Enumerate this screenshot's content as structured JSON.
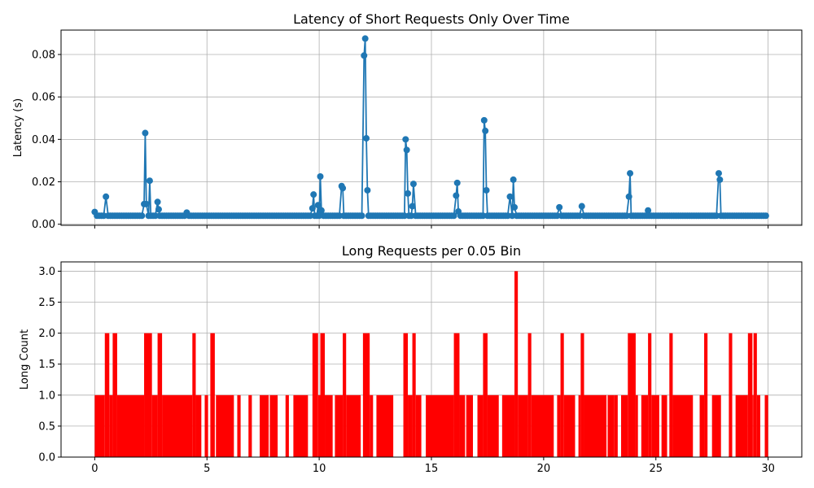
{
  "chart_data": [
    {
      "type": "line",
      "title": "Latency of Short Requests Only Over Time",
      "xlabel": "",
      "ylabel": "Latency (s)",
      "xlim": [
        -1.5,
        31.5
      ],
      "ylim": [
        -0.0005,
        0.0915
      ],
      "xticks": [
        0,
        5,
        10,
        15,
        20,
        25,
        30
      ],
      "xtick_labels": [
        "",
        "",
        "",
        "",
        "",
        "",
        ""
      ],
      "yticks": [
        0.0,
        0.02,
        0.04,
        0.06,
        0.08
      ],
      "ytick_labels": [
        "0.00",
        "0.02",
        "0.04",
        "0.06",
        "0.08"
      ],
      "grid": true,
      "color": "#1f77b4",
      "baseline": 0.004,
      "x_start": 0.0,
      "x_end": 29.9,
      "x_step": 0.1,
      "spikes": [
        [
          0.0,
          0.0058
        ],
        [
          0.5,
          0.013
        ],
        [
          2.2,
          0.0095
        ],
        [
          2.25,
          0.043
        ],
        [
          2.3,
          0.0095
        ],
        [
          2.45,
          0.0205
        ],
        [
          2.8,
          0.0105
        ],
        [
          2.85,
          0.007
        ],
        [
          4.1,
          0.0055
        ],
        [
          9.7,
          0.0075
        ],
        [
          9.75,
          0.014
        ],
        [
          9.95,
          0.009
        ],
        [
          10.05,
          0.0225
        ],
        [
          10.1,
          0.0065
        ],
        [
          11.0,
          0.018
        ],
        [
          11.05,
          0.017
        ],
        [
          12.0,
          0.0795
        ],
        [
          12.05,
          0.0875
        ],
        [
          12.1,
          0.0405
        ],
        [
          12.15,
          0.016
        ],
        [
          13.85,
          0.04
        ],
        [
          13.9,
          0.035
        ],
        [
          13.95,
          0.0145
        ],
        [
          14.15,
          0.0085
        ],
        [
          14.2,
          0.019
        ],
        [
          16.1,
          0.0135
        ],
        [
          16.15,
          0.0195
        ],
        [
          16.2,
          0.006
        ],
        [
          17.35,
          0.049
        ],
        [
          17.4,
          0.044
        ],
        [
          17.45,
          0.016
        ],
        [
          18.5,
          0.013
        ],
        [
          18.65,
          0.021
        ],
        [
          18.7,
          0.008
        ],
        [
          20.7,
          0.008
        ],
        [
          21.7,
          0.0085
        ],
        [
          23.8,
          0.013
        ],
        [
          23.85,
          0.024
        ],
        [
          24.65,
          0.0065
        ],
        [
          27.8,
          0.024
        ],
        [
          27.85,
          0.021
        ]
      ]
    },
    {
      "type": "bar",
      "title": "Long Requests per 0.05 Bin",
      "xlabel": "",
      "ylabel": "Long Count",
      "xlim": [
        -1.5,
        31.5
      ],
      "ylim": [
        0,
        3.15
      ],
      "xticks": [
        0,
        5,
        10,
        15,
        20,
        25,
        30
      ],
      "xtick_labels": [
        "0",
        "5",
        "10",
        "15",
        "20",
        "25",
        "30"
      ],
      "yticks": [
        0.0,
        0.5,
        1.0,
        1.5,
        2.0,
        2.5,
        3.0
      ],
      "ytick_labels": [
        "0.0",
        "0.5",
        "1.0",
        "1.5",
        "2.0",
        "2.5",
        "3.0"
      ],
      "grid": true,
      "color": "#ff0000",
      "bin_width": 0.05,
      "segments": [
        [
          0.0,
          0.45,
          1
        ],
        [
          0.45,
          0.65,
          2
        ],
        [
          0.65,
          0.8,
          1
        ],
        [
          0.8,
          1.0,
          2
        ],
        [
          1.0,
          2.2,
          1
        ],
        [
          2.2,
          2.55,
          2
        ],
        [
          2.55,
          2.8,
          1
        ],
        [
          2.8,
          3.0,
          2
        ],
        [
          3.0,
          4.35,
          1
        ],
        [
          4.35,
          4.5,
          2
        ],
        [
          4.5,
          4.75,
          1
        ],
        [
          4.9,
          5.05,
          1
        ],
        [
          5.15,
          5.35,
          2
        ],
        [
          5.4,
          6.2,
          1
        ],
        [
          6.35,
          6.5,
          1
        ],
        [
          6.85,
          7.0,
          1
        ],
        [
          7.35,
          7.75,
          1
        ],
        [
          7.8,
          8.15,
          1
        ],
        [
          8.5,
          8.65,
          1
        ],
        [
          8.85,
          9.5,
          1
        ],
        [
          9.7,
          9.95,
          2
        ],
        [
          9.95,
          10.05,
          1
        ],
        [
          10.05,
          10.25,
          2
        ],
        [
          10.25,
          10.6,
          1
        ],
        [
          10.7,
          11.05,
          1
        ],
        [
          11.05,
          11.2,
          2
        ],
        [
          11.2,
          11.85,
          1
        ],
        [
          11.95,
          12.25,
          2
        ],
        [
          12.25,
          12.4,
          1
        ],
        [
          12.55,
          13.3,
          1
        ],
        [
          13.75,
          13.95,
          2
        ],
        [
          13.95,
          14.15,
          1
        ],
        [
          14.15,
          14.3,
          2
        ],
        [
          14.3,
          14.55,
          1
        ],
        [
          14.75,
          16.0,
          1
        ],
        [
          16.0,
          16.25,
          2
        ],
        [
          16.25,
          16.5,
          1
        ],
        [
          16.55,
          16.85,
          1
        ],
        [
          17.05,
          17.3,
          1
        ],
        [
          17.3,
          17.5,
          2
        ],
        [
          17.5,
          18.0,
          1
        ],
        [
          18.15,
          18.7,
          1
        ],
        [
          18.7,
          18.85,
          3
        ],
        [
          18.85,
          19.3,
          1
        ],
        [
          19.3,
          19.45,
          2
        ],
        [
          19.45,
          20.45,
          1
        ],
        [
          20.6,
          20.75,
          1
        ],
        [
          20.75,
          20.9,
          2
        ],
        [
          20.9,
          21.4,
          1
        ],
        [
          21.55,
          21.65,
          1
        ],
        [
          21.65,
          21.8,
          2
        ],
        [
          21.8,
          22.8,
          1
        ],
        [
          22.85,
          23.15,
          1
        ],
        [
          23.15,
          23.3,
          1
        ],
        [
          23.45,
          23.75,
          1
        ],
        [
          23.75,
          24.1,
          2
        ],
        [
          24.1,
          24.2,
          1
        ],
        [
          24.35,
          24.65,
          1
        ],
        [
          24.65,
          24.8,
          2
        ],
        [
          24.8,
          25.15,
          1
        ],
        [
          25.25,
          25.5,
          1
        ],
        [
          25.6,
          25.75,
          2
        ],
        [
          25.75,
          26.65,
          1
        ],
        [
          26.95,
          27.15,
          1
        ],
        [
          27.15,
          27.3,
          2
        ],
        [
          27.5,
          27.9,
          1
        ],
        [
          28.25,
          28.4,
          2
        ],
        [
          28.55,
          29.1,
          1
        ],
        [
          29.1,
          29.3,
          2
        ],
        [
          29.3,
          29.35,
          1
        ],
        [
          29.35,
          29.5,
          2
        ],
        [
          29.5,
          29.65,
          1
        ],
        [
          29.85,
          30.0,
          1
        ]
      ]
    }
  ]
}
